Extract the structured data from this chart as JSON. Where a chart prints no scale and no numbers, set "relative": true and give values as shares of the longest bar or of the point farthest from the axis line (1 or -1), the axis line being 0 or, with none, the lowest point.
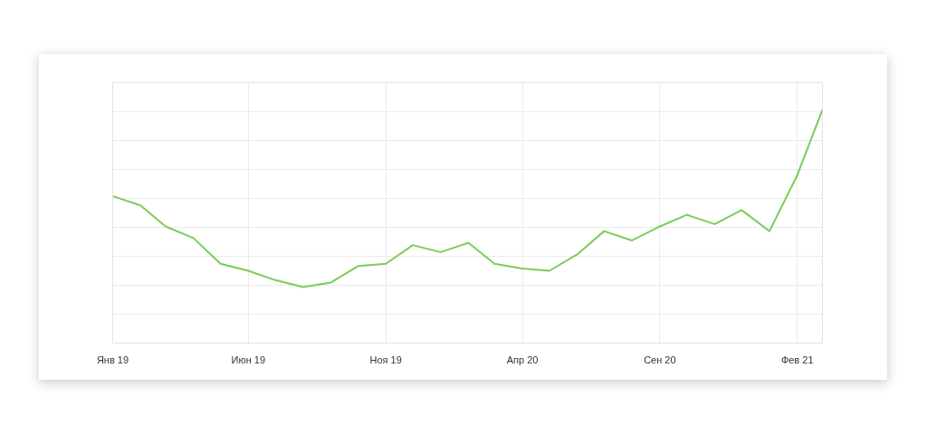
{
  "chart_data": {
    "type": "line",
    "relative": true,
    "x": [
      "2019-01",
      "2019-02",
      "2019-03",
      "2019-04",
      "2019-05",
      "2019-06",
      "2019-07",
      "2019-08",
      "2019-09",
      "2019-10",
      "2019-11",
      "2019-12",
      "2020-01",
      "2020-02",
      "2020-03",
      "2020-04",
      "2020-05",
      "2020-06",
      "2020-07",
      "2020-08",
      "2020-09",
      "2020-10",
      "2020-11",
      "2020-12",
      "2021-01",
      "2021-02",
      "2021-03"
    ],
    "series": [
      {
        "color": "#7dcc57",
        "values": [
          0.63,
          0.59,
          0.5,
          0.45,
          0.34,
          0.31,
          0.27,
          0.24,
          0.26,
          0.33,
          0.34,
          0.42,
          0.39,
          0.43,
          0.34,
          0.32,
          0.31,
          0.38,
          0.48,
          0.44,
          0.5,
          0.55,
          0.51,
          0.57,
          0.48,
          0.72,
          1.0
        ]
      }
    ],
    "xlim": [
      "2019-01",
      "2021-03"
    ],
    "xticks": [
      {
        "value": "2019-01",
        "label": "Янв 19"
      },
      {
        "value": "2019-06",
        "label": "Июн 19"
      },
      {
        "value": "2019-11",
        "label": "Ноя 19"
      },
      {
        "value": "2020-04",
        "label": "Апр 20"
      },
      {
        "value": "2020-09",
        "label": "Сен 20"
      },
      {
        "value": "2021-02",
        "label": "Фев 21"
      }
    ],
    "grid": true
  }
}
